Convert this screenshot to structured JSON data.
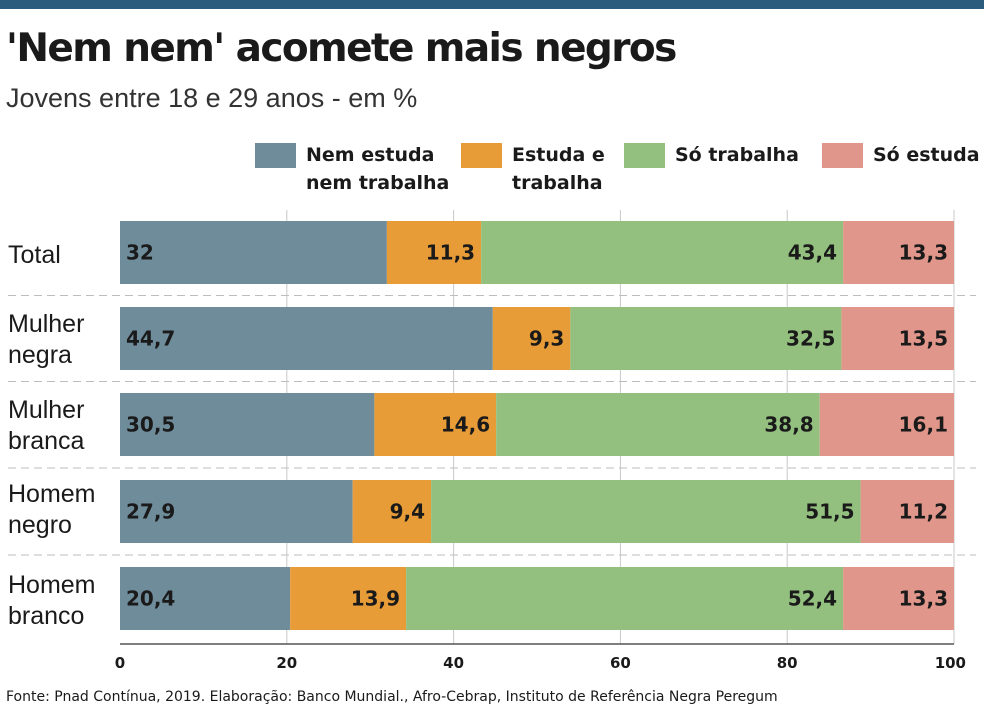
{
  "title": "'Nem nem' acomete mais negros",
  "subtitle": "Jovens entre 18 e 29 anos - em %",
  "source": "Fonte: Pnad Contínua, 2019. Elaboração: Banco Mundial., Afro-Cebrap, Instituto de Referência Negra Peregum",
  "colors": {
    "header_bar": "#2b5c7e",
    "nem_estuda_nem_trabalha": "#6f8c9b",
    "estuda_e_trabalha": "#e79c38",
    "so_trabalha": "#93c07f",
    "so_estuda": "#e0968a"
  },
  "chart_data": {
    "type": "bar",
    "orientation": "horizontal",
    "stacked": true,
    "categories": [
      "Total",
      "Mulher\nnegra",
      "Mulher\nbranca",
      "Homem\nnegro",
      "Homem\nbranco"
    ],
    "series": [
      {
        "name": "Nem estuda\nnem trabalha",
        "color": "#6f8c9b",
        "values": [
          32,
          44.7,
          30.5,
          27.9,
          20.4
        ],
        "labels": [
          "32",
          "44,7",
          "30,5",
          "27,9",
          "20,4"
        ]
      },
      {
        "name": "Estuda e\ntrabalha",
        "color": "#e79c38",
        "values": [
          11.3,
          9.3,
          14.6,
          9.4,
          13.9
        ],
        "labels": [
          "11,3",
          "9,3",
          "14,6",
          "9,4",
          "13,9"
        ]
      },
      {
        "name": "Só trabalha",
        "color": "#93c07f",
        "values": [
          43.4,
          32.5,
          38.8,
          51.5,
          52.4
        ],
        "labels": [
          "43,4",
          "32,5",
          "38,8",
          "51,5",
          "52,4"
        ]
      },
      {
        "name": "Só estuda",
        "color": "#e0968a",
        "values": [
          13.3,
          13.5,
          16.1,
          11.2,
          13.3
        ],
        "labels": [
          "13,3",
          "13,5",
          "16,1",
          "11,2",
          "13,3"
        ]
      }
    ],
    "xlim": [
      0,
      100
    ],
    "xticks": [
      "0",
      "20",
      "40",
      "60",
      "80",
      "100"
    ],
    "grid": true,
    "legend_position": "top-right"
  }
}
